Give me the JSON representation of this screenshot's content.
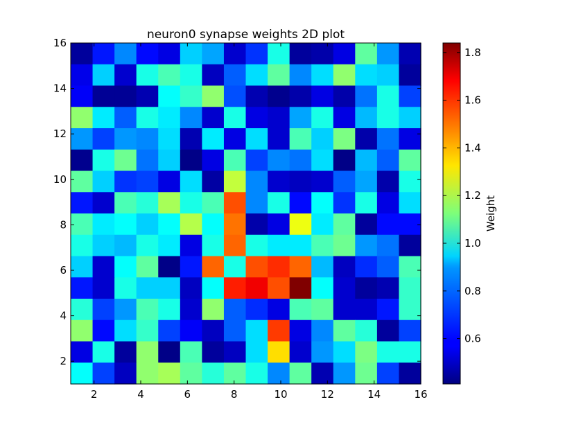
{
  "chart_data": {
    "type": "heatmap",
    "title": "neuron0 synapse weights 2D plot",
    "xlabel": "",
    "ylabel": "",
    "colorbar_label": "Weight",
    "colormap": "jet",
    "xlim": [
      1,
      16
    ],
    "ylim": [
      1,
      16
    ],
    "value_range": [
      0.41,
      1.84
    ],
    "x_ticks": [
      2,
      4,
      6,
      8,
      10,
      12,
      14,
      16
    ],
    "y_ticks": [
      2,
      4,
      6,
      8,
      10,
      12,
      14,
      16
    ],
    "x_tick_labels": [
      "2",
      "4",
      "6",
      "8",
      "10",
      "12",
      "14",
      "16"
    ],
    "y_tick_labels": [
      "2",
      "4",
      "6",
      "8",
      "10",
      "12",
      "14",
      "16"
    ],
    "colorbar_ticks": [
      0.6,
      0.8,
      1.0,
      1.2,
      1.4,
      1.6,
      1.8
    ],
    "colorbar_tick_labels": [
      "0.6",
      "0.8",
      "1.0",
      "1.2",
      "1.4",
      "1.6",
      "1.8"
    ],
    "grid": false,
    "note_rows": "rows listed top (y=15..16) to bottom (y=1..2); columns left (x=1..2) to right (x=15..16)",
    "values": [
      [
        0.45,
        0.62,
        0.78,
        0.6,
        0.55,
        0.88,
        0.82,
        0.52,
        0.66,
        0.98,
        0.45,
        0.47,
        0.55,
        1.08,
        0.8,
        0.48
      ],
      [
        0.56,
        0.88,
        0.52,
        0.98,
        1.05,
        0.98,
        0.5,
        0.72,
        0.9,
        1.08,
        0.78,
        0.9,
        1.15,
        0.9,
        0.88,
        0.45
      ],
      [
        0.58,
        0.44,
        0.44,
        0.48,
        0.95,
        1.02,
        1.15,
        0.7,
        0.48,
        0.43,
        0.47,
        0.55,
        0.47,
        0.75,
        0.98,
        0.68
      ],
      [
        1.15,
        0.92,
        0.72,
        0.98,
        0.92,
        0.78,
        0.52,
        0.98,
        0.55,
        0.52,
        0.82,
        0.98,
        0.55,
        0.85,
        0.98,
        0.88
      ],
      [
        0.8,
        0.68,
        0.8,
        0.78,
        0.9,
        0.48,
        0.92,
        0.55,
        0.9,
        0.52,
        1.05,
        0.88,
        1.12,
        0.47,
        0.75,
        0.55
      ],
      [
        0.43,
        0.98,
        1.1,
        0.75,
        0.88,
        0.42,
        0.55,
        1.05,
        0.68,
        0.78,
        0.75,
        0.9,
        0.42,
        0.85,
        0.72,
        1.08
      ],
      [
        1.08,
        0.88,
        0.66,
        0.68,
        0.55,
        0.9,
        0.46,
        1.22,
        0.78,
        0.52,
        0.5,
        0.52,
        0.72,
        0.82,
        0.47,
        0.98
      ],
      [
        0.62,
        0.52,
        1.05,
        1.0,
        1.18,
        0.98,
        1.05,
        1.55,
        0.78,
        0.98,
        0.6,
        0.95,
        0.66,
        0.98,
        0.55,
        0.9
      ],
      [
        1.05,
        0.92,
        0.95,
        0.88,
        0.95,
        1.2,
        0.95,
        1.5,
        0.47,
        0.55,
        1.28,
        0.92,
        1.08,
        0.45,
        0.6,
        0.6
      ],
      [
        0.98,
        0.88,
        0.85,
        0.98,
        0.92,
        0.55,
        0.98,
        1.52,
        0.98,
        0.92,
        0.92,
        1.05,
        1.1,
        0.8,
        0.75,
        0.45
      ],
      [
        0.88,
        0.52,
        0.95,
        1.08,
        0.42,
        0.62,
        1.52,
        0.98,
        1.55,
        1.6,
        1.52,
        0.85,
        0.5,
        0.65,
        0.72,
        1.05
      ],
      [
        0.62,
        0.52,
        0.98,
        0.88,
        0.88,
        0.5,
        0.95,
        1.62,
        1.68,
        1.55,
        1.84,
        0.95,
        0.52,
        0.45,
        0.48,
        1.02
      ],
      [
        1.0,
        0.68,
        0.8,
        1.05,
        0.98,
        0.52,
        1.15,
        0.72,
        0.65,
        0.55,
        1.05,
        1.08,
        0.52,
        0.52,
        0.62,
        1.02
      ],
      [
        1.15,
        0.6,
        0.9,
        1.02,
        0.68,
        0.58,
        0.5,
        0.72,
        0.9,
        1.58,
        0.55,
        0.78,
        1.08,
        1.0,
        0.45,
        0.68
      ],
      [
        0.55,
        0.98,
        0.45,
        1.15,
        0.42,
        1.05,
        0.45,
        0.5,
        0.9,
        1.35,
        0.52,
        0.8,
        0.9,
        1.12,
        0.98,
        0.98
      ],
      [
        0.95,
        0.68,
        0.5,
        1.15,
        1.18,
        1.08,
        1.0,
        1.08,
        0.98,
        0.78,
        1.08,
        0.48,
        0.8,
        1.1,
        0.68,
        0.45
      ]
    ]
  }
}
